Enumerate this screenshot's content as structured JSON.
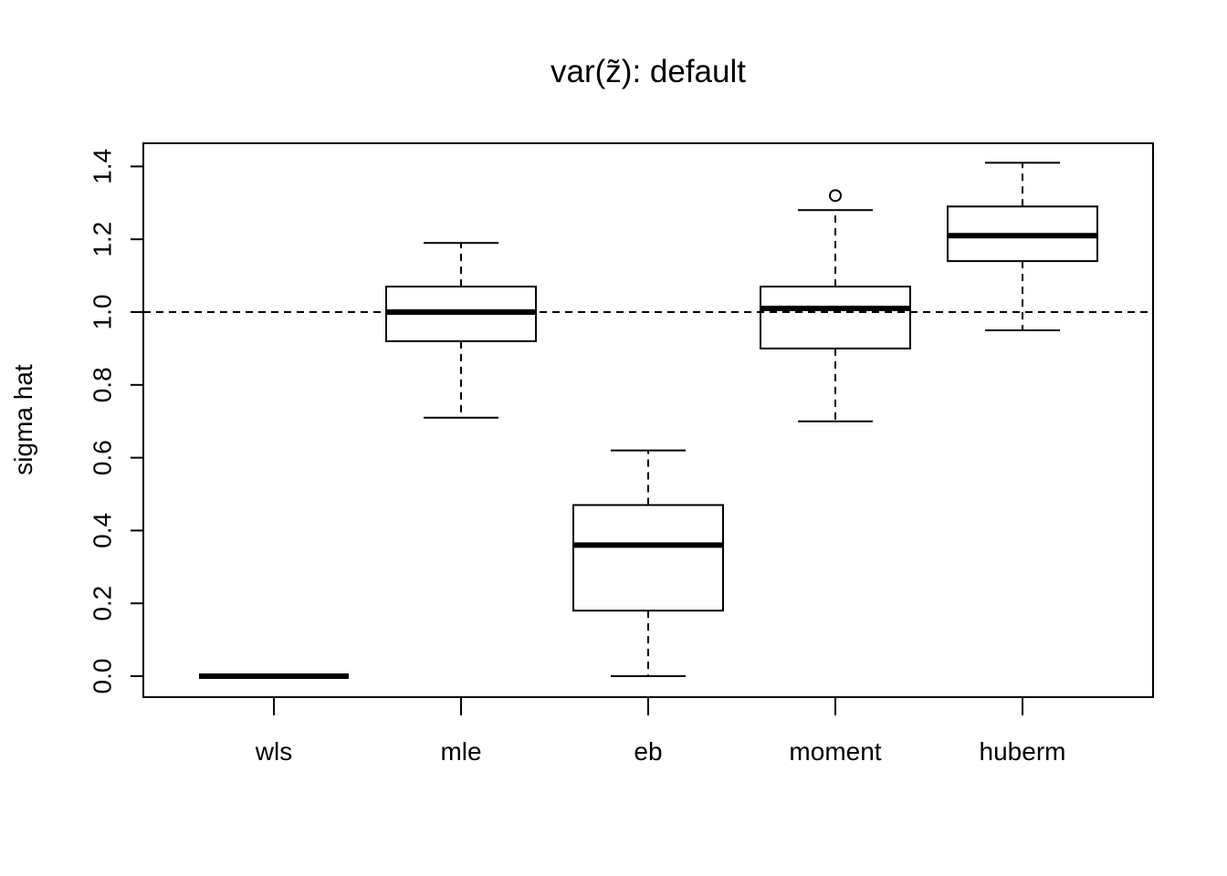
{
  "chart_data": {
    "type": "boxplot",
    "title": "var(z̃): default",
    "xlabel": "",
    "ylabel": "sigma hat",
    "ylim": [
      -0.05,
      1.47
    ],
    "yticks": [
      "0.0",
      "0.2",
      "0.4",
      "0.6",
      "0.8",
      "1.0",
      "1.2",
      "1.4"
    ],
    "reference_line": {
      "y": 1.0,
      "style": "dashed"
    },
    "grid": false,
    "categories": [
      "wls",
      "mle",
      "eb",
      "moment",
      "huberm"
    ],
    "boxes": [
      {
        "name": "wls",
        "whisker_low": 0.0,
        "q1": 0.0,
        "median": 0.0,
        "q3": 0.0,
        "whisker_high": 0.0,
        "outliers": []
      },
      {
        "name": "mle",
        "whisker_low": 0.71,
        "q1": 0.92,
        "median": 1.0,
        "q3": 1.07,
        "whisker_high": 1.19,
        "outliers": []
      },
      {
        "name": "eb",
        "whisker_low": 0.0,
        "q1": 0.18,
        "median": 0.36,
        "q3": 0.47,
        "whisker_high": 0.62,
        "outliers": []
      },
      {
        "name": "moment",
        "whisker_low": 0.7,
        "q1": 0.9,
        "median": 1.01,
        "q3": 1.07,
        "whisker_high": 1.28,
        "outliers": [
          1.32
        ]
      },
      {
        "name": "huberm",
        "whisker_low": 0.95,
        "q1": 1.14,
        "median": 1.21,
        "q3": 1.29,
        "whisker_high": 1.41,
        "outliers": []
      }
    ]
  }
}
